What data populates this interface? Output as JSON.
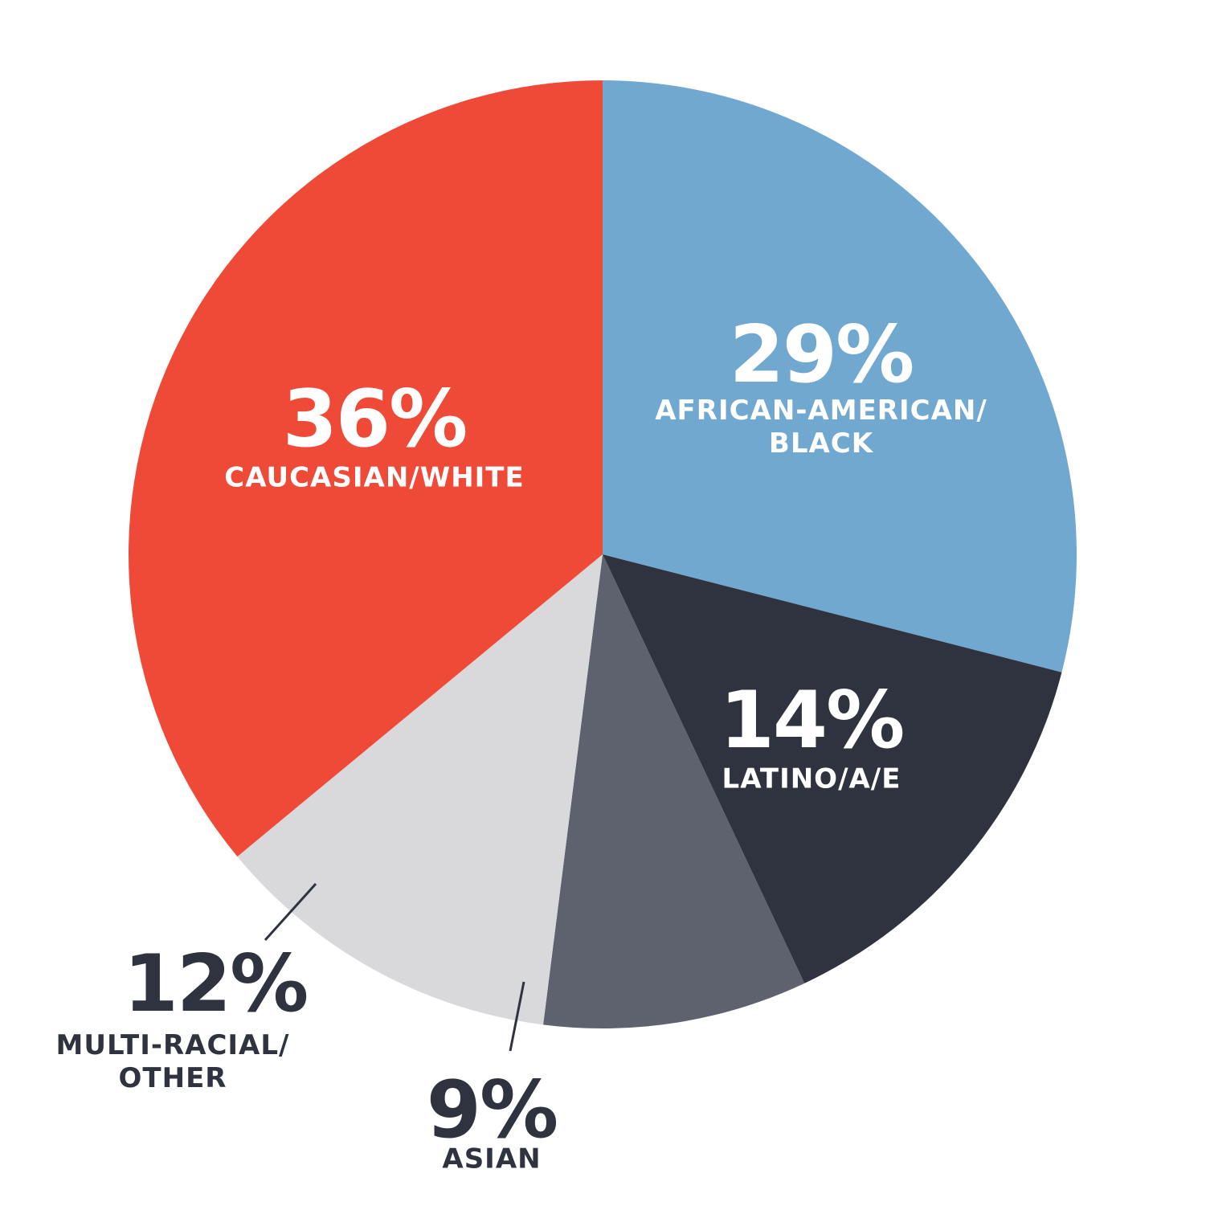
{
  "chart_data": {
    "type": "pie",
    "categories": [
      "AFRICAN-AMERICAN/\nBLACK",
      "LATINO/A/E",
      "ASIAN",
      "MULTI-RACIAL/\nOTHER",
      "CAUCASIAN/WHITE"
    ],
    "values": [
      29,
      14,
      9,
      12,
      36
    ],
    "value_labels": [
      "29%",
      "14%",
      "9%",
      "12%",
      "36%"
    ],
    "colors": [
      "#70a8d0",
      "#2f333f",
      "#5e626f",
      "#d9d9db",
      "#ef4a38"
    ]
  }
}
